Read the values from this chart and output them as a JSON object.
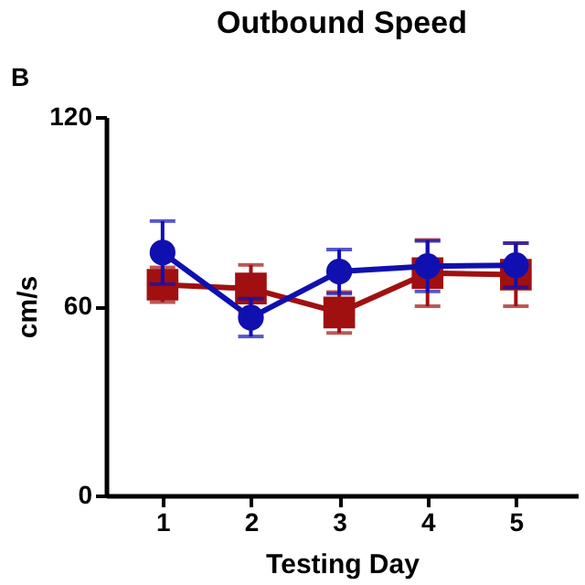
{
  "chart_data": {
    "type": "line",
    "title": "Outbound Speed",
    "xlabel": "Testing  Day",
    "ylabel": "cm/s",
    "annotations": [
      "B"
    ],
    "x": [
      1,
      2,
      3,
      4,
      5
    ],
    "xlim": [
      0.36,
      5.7
    ],
    "xticks": [
      1,
      2,
      3,
      4,
      5
    ],
    "ylim": [
      0,
      120
    ],
    "yticks": [
      0,
      60,
      120
    ],
    "grid": false,
    "line_style": "solid",
    "series": [
      {
        "color": "#a01010",
        "marker": "square",
        "values": [
          66.8,
          65.6,
          58,
          70.5,
          70
        ],
        "errors": [
          5.5,
          7.5,
          6.5,
          10.5,
          10
        ]
      },
      {
        "color": "#1010b0",
        "marker": "circle",
        "values": [
          77,
          56.4,
          71,
          72.7,
          73
        ],
        "errors": [
          10,
          6,
          7,
          8,
          7
        ]
      }
    ]
  }
}
